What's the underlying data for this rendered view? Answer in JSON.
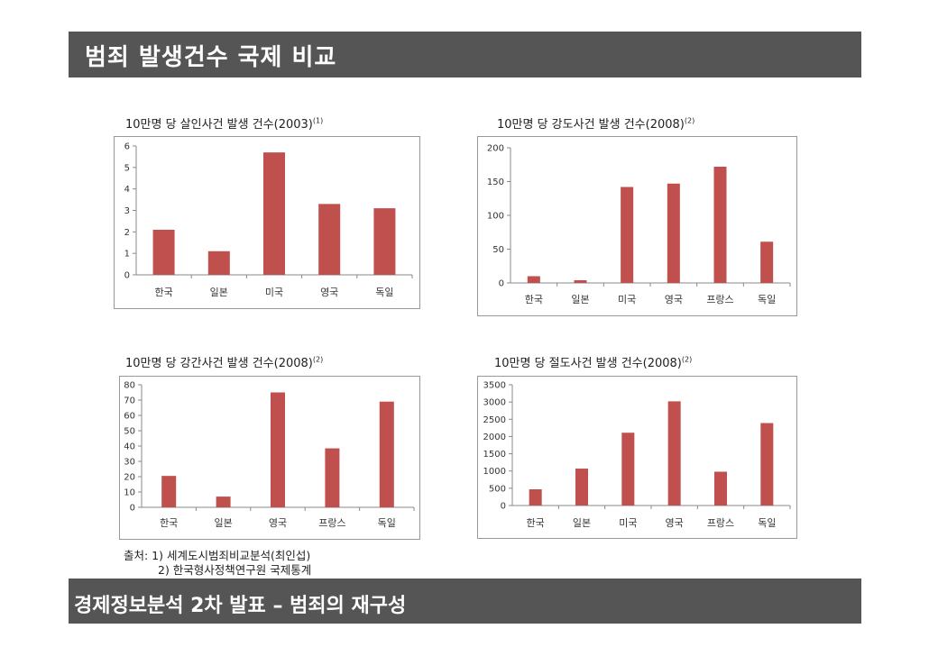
{
  "header": {
    "title": "범죄 발생건수 국제 비교"
  },
  "footer": {
    "title": "경제정보분석  2차 발표 – 범죄의 재구성"
  },
  "source": {
    "line1": "출처: 1) 세계도시범죄비교분석(최인섭)",
    "line2": "2) 한국형사정책연구원 국제통계"
  },
  "chart_data": [
    {
      "type": "bar",
      "title": "10만명 당 살인사건 발생 건수(2003)",
      "title_note": "(1)",
      "categories": [
        "한국",
        "일본",
        "미국",
        "영국",
        "독일"
      ],
      "values": [
        2.1,
        1.1,
        5.7,
        3.3,
        3.1
      ],
      "ylim": [
        0,
        6
      ],
      "yticks": [
        0,
        1,
        2,
        3,
        4,
        5,
        6
      ],
      "color": "#C0504D",
      "grid": false,
      "legend": "none"
    },
    {
      "type": "bar",
      "title": "10만명 당 강도사건 발생 건수(2008)",
      "title_note": "(2)",
      "categories": [
        "한국",
        "일본",
        "미국",
        "영국",
        "프랑스",
        "독일"
      ],
      "values": [
        10,
        4,
        142,
        147,
        172,
        61
      ],
      "ylim": [
        0,
        200
      ],
      "yticks": [
        0,
        50,
        100,
        150,
        200
      ],
      "color": "#C0504D",
      "grid": false,
      "legend": "none"
    },
    {
      "type": "bar",
      "title": "10만명 당 강간사건 발생 건수(2008)",
      "title_note": "(2)",
      "categories": [
        "한국",
        "일본",
        "영국",
        "프랑스",
        "독일"
      ],
      "values": [
        20.5,
        7,
        75,
        38.5,
        69
      ],
      "ylim": [
        0,
        80
      ],
      "yticks": [
        0,
        10,
        20,
        30,
        40,
        50,
        60,
        70,
        80
      ],
      "color": "#C0504D",
      "grid": false,
      "legend": "none"
    },
    {
      "type": "bar",
      "title": "10만명 당 절도사건 발생 건수(2008)",
      "title_note": "(2)",
      "categories": [
        "한국",
        "일본",
        "미국",
        "영국",
        "프랑스",
        "독일"
      ],
      "values": [
        470,
        1070,
        2110,
        3020,
        980,
        2390
      ],
      "ylim": [
        0,
        3500
      ],
      "yticks": [
        0,
        500,
        1000,
        1500,
        2000,
        2500,
        3000,
        3500
      ],
      "color": "#C0504D",
      "grid": false,
      "legend": "none"
    }
  ]
}
